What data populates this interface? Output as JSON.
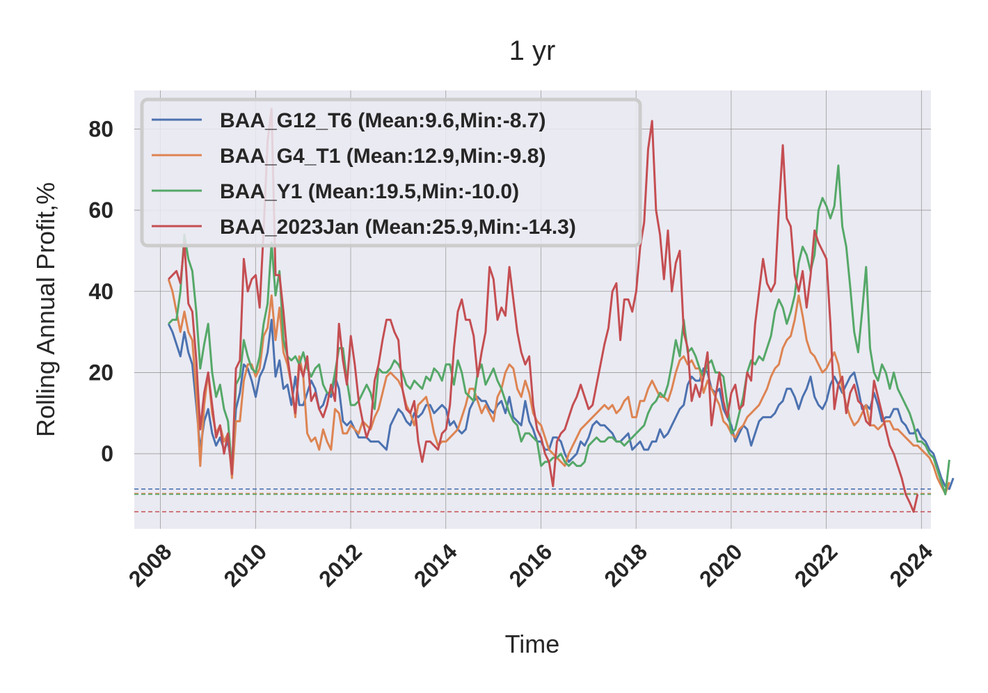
{
  "chart_data": {
    "type": "line",
    "title": "1 yr",
    "xlabel": "Time",
    "ylabel": "Rolling Annual Profit,%",
    "xlim": [
      2007.45,
      2024.2
    ],
    "ylim": [
      -18.5,
      89.5
    ],
    "x_ticks": [
      2008,
      2010,
      2012,
      2014,
      2016,
      2018,
      2020,
      2022,
      2024
    ],
    "y_ticks": [
      0,
      20,
      40,
      60,
      80
    ],
    "grid": true,
    "legend": "upper-left",
    "x_step_years": 0.08333,
    "x_start": 2008.17,
    "series": [
      {
        "name": "BAA_G12_T6 (Mean:9.6,Min:-8.7)",
        "color": "#4c72b0",
        "min_line": -8.7,
        "values": [
          32,
          30,
          27,
          24,
          30,
          25,
          22,
          12,
          1,
          8,
          11,
          5,
          2,
          4,
          1,
          3,
          -4,
          11,
          15,
          22,
          21,
          18,
          14,
          19,
          21,
          25,
          33,
          19,
          23,
          16,
          17,
          12,
          19,
          12,
          12,
          15,
          18,
          16,
          11,
          12,
          15,
          14,
          19,
          16,
          8,
          7,
          8,
          6,
          4,
          4,
          4,
          3,
          3,
          3,
          2,
          1,
          7,
          9,
          11,
          10,
          8,
          7,
          10,
          9,
          10,
          12,
          12,
          10,
          11,
          12,
          11,
          7,
          8,
          6,
          5,
          6,
          11,
          13,
          14,
          13,
          13,
          11,
          10,
          12,
          13,
          10,
          14,
          9,
          8,
          7,
          13,
          8,
          6,
          3,
          3,
          1,
          1,
          4,
          4,
          3,
          0,
          -2,
          -1,
          0,
          3,
          2,
          4,
          7,
          8,
          7,
          7,
          6,
          5,
          3,
          3,
          4,
          5,
          1,
          2,
          3,
          1,
          1,
          3,
          3,
          6,
          4,
          5,
          7,
          9,
          11,
          12,
          17,
          19,
          18,
          18,
          21,
          20,
          16,
          15,
          16,
          11,
          9,
          7,
          3,
          5,
          7,
          6,
          2,
          5,
          8,
          9,
          9,
          9,
          10,
          12,
          13,
          16,
          16,
          14,
          11,
          14,
          16,
          19,
          14,
          12,
          11,
          13,
          17,
          19,
          17,
          15,
          17,
          19,
          20,
          16,
          11,
          12,
          11,
          15,
          12,
          8,
          9,
          9,
          11,
          11,
          8,
          7,
          5,
          5,
          6,
          4,
          3,
          1,
          0,
          -3,
          -6,
          -8,
          -8.7,
          -6
        ]
      },
      {
        "name": "BAA_G4_T1 (Mean:12.9,Min:-9.8)",
        "color": "#dd8452",
        "min_line": -9.8,
        "values": [
          43,
          40,
          35,
          30,
          35,
          30,
          28,
          15,
          -3,
          12,
          20,
          10,
          5,
          7,
          3,
          5,
          -6,
          8,
          8,
          18,
          22,
          22,
          19,
          21,
          29,
          31,
          39,
          28,
          36,
          25,
          22,
          17,
          9,
          24,
          19,
          5,
          3,
          4,
          1,
          6,
          3,
          1,
          11,
          10,
          5,
          5,
          7,
          6,
          5,
          8,
          7,
          6,
          9,
          11,
          15,
          19,
          20,
          19,
          18,
          16,
          12,
          10,
          7,
          12,
          13,
          14,
          10,
          5,
          2,
          3,
          3,
          4,
          5,
          6,
          9,
          12,
          16,
          16,
          13,
          10,
          12,
          10,
          8,
          14,
          16,
          20,
          22,
          21,
          16,
          14,
          18,
          15,
          10,
          8,
          7,
          4,
          1,
          0,
          -1,
          -2,
          -3,
          0,
          2,
          4,
          6,
          7,
          8,
          9,
          10,
          11,
          12,
          11,
          12,
          10,
          11,
          13,
          14,
          9,
          9,
          13,
          13,
          16,
          18,
          16,
          14,
          14,
          13,
          16,
          20,
          23,
          24,
          22,
          23,
          21,
          21,
          15,
          18,
          16,
          14,
          12,
          8,
          7,
          5,
          4,
          6,
          7,
          9,
          10,
          11,
          12,
          14,
          16,
          19,
          21,
          22,
          26,
          28,
          29,
          33,
          39,
          34,
          28,
          25,
          24,
          22,
          20,
          21,
          23,
          25,
          22,
          16,
          12,
          9,
          7,
          8,
          10,
          12,
          7,
          7,
          6,
          7,
          8,
          8,
          6,
          6,
          5,
          4,
          3,
          2,
          2,
          1,
          0,
          -1,
          -3,
          -6,
          -8,
          -9.8,
          -7
        ]
      },
      {
        "name": "BAA_Y1 (Mean:19.5,Min:-10.0)",
        "color": "#55a868",
        "min_line": -10.0,
        "values": [
          32,
          33,
          33,
          40,
          54,
          48,
          45,
          35,
          21,
          27,
          32,
          20,
          14,
          17,
          11,
          8,
          -4,
          17,
          19,
          28,
          24,
          21,
          20,
          24,
          32,
          37,
          52,
          39,
          45,
          28,
          24,
          23,
          24,
          22,
          25,
          21,
          19,
          21,
          22,
          17,
          15,
          15,
          20,
          26,
          26,
          18,
          12,
          12,
          13,
          15,
          17,
          15,
          11,
          21,
          20,
          20,
          21,
          23,
          22,
          20,
          17,
          16,
          18,
          17,
          16,
          19,
          18,
          21,
          20,
          18,
          22,
          22,
          17,
          23,
          20,
          15,
          14,
          13,
          20,
          22,
          17,
          19,
          21,
          18,
          16,
          13,
          10,
          8,
          7,
          3,
          5,
          5,
          4,
          3,
          -3,
          -2,
          -2,
          -1,
          -1,
          0,
          -2,
          -3,
          -2,
          -3,
          -3,
          -2,
          2,
          3,
          4,
          3,
          3,
          4,
          4,
          3,
          3,
          2,
          3,
          4,
          5,
          6,
          7,
          10,
          12,
          13,
          15,
          14,
          17,
          22,
          28,
          24,
          33,
          25,
          26,
          24,
          21,
          19,
          22,
          23,
          20,
          20,
          19,
          12,
          5,
          6,
          10,
          14,
          20,
          23,
          22,
          24,
          23,
          26,
          29,
          35,
          38,
          36,
          32,
          35,
          39,
          47,
          51,
          49,
          45,
          49,
          60,
          63,
          61,
          58,
          61,
          71,
          56,
          51,
          41,
          30,
          25,
          35,
          46,
          26,
          20,
          18,
          22,
          20,
          16,
          20,
          16,
          14,
          12,
          10,
          7,
          3,
          3,
          2,
          0,
          -1,
          -4,
          -7,
          -10,
          -1.5
        ]
      },
      {
        "name": "BAA_2023Jan (Mean:25.9,Min:-14.3)",
        "color": "#c44e52",
        "min_line": -14.3,
        "values": [
          43,
          44,
          45,
          42,
          52,
          37,
          35,
          23,
          6,
          15,
          20,
          12,
          4,
          7,
          0,
          5,
          -5,
          21,
          23,
          48,
          40,
          43,
          44,
          36,
          55,
          77,
          85,
          44,
          44,
          35,
          24,
          17,
          10,
          22,
          19,
          24,
          13,
          15,
          11,
          9,
          12,
          17,
          13,
          32,
          23,
          17,
          29,
          22,
          13,
          8,
          4,
          7,
          18,
          22,
          28,
          33,
          33,
          30,
          28,
          16,
          11,
          10,
          13,
          3,
          -2,
          3,
          3,
          2,
          1,
          5,
          6,
          12,
          26,
          35,
          38,
          33,
          33,
          29,
          19,
          25,
          30,
          46,
          43,
          33,
          36,
          34,
          46,
          38,
          30,
          25,
          22,
          24,
          12,
          6,
          4,
          0,
          -2,
          -8,
          3,
          5,
          6,
          9,
          12,
          14,
          17,
          14,
          11,
          12,
          17,
          22,
          27,
          31,
          40,
          42,
          28,
          38,
          38,
          35,
          40,
          51,
          57,
          75,
          82,
          60,
          54,
          43,
          55,
          40,
          47,
          50,
          30,
          26,
          13,
          17,
          14,
          19,
          25,
          7,
          14,
          20,
          13,
          9,
          15,
          17,
          11,
          12,
          20,
          18,
          32,
          40,
          48,
          42,
          40,
          42,
          60,
          76,
          58,
          56,
          44,
          40,
          45,
          36,
          44,
          55,
          52,
          50,
          48,
          32,
          11,
          17,
          19,
          10,
          15,
          17,
          13,
          12,
          8,
          7,
          18,
          14,
          10,
          6,
          2,
          0,
          -3,
          -6,
          -10,
          -12,
          -14.3,
          -10
        ]
      }
    ]
  }
}
